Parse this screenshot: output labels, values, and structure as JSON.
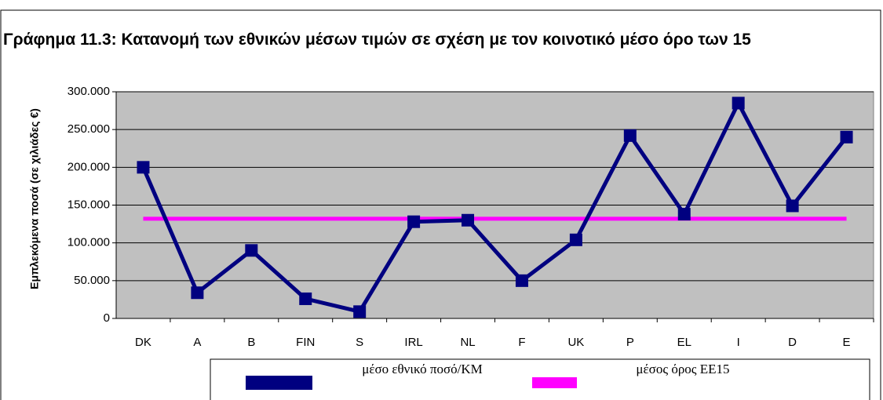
{
  "chart_data": {
    "type": "line",
    "title": "Γράφημα 11.3: Κατανομή των εθνικών μέσων τιμών σε σχέση με τον κοινοτικό μέσο όρο των 15",
    "ylabel": "Εμπλεκόμενα ποσά (σε χιλιάδες €)",
    "categories": [
      "DK",
      "A",
      "B",
      "FIN",
      "S",
      "IRL",
      "NL",
      "F",
      "UK",
      "P",
      "EL",
      "I",
      "D",
      "E"
    ],
    "series": [
      {
        "name": "μέσο εθνικό ποσό/ΚΜ",
        "color": "#000080",
        "marker": true,
        "values": [
          200000,
          34000,
          90000,
          26000,
          9000,
          128000,
          130000,
          50000,
          104000,
          242000,
          138000,
          285000,
          149000,
          240000
        ]
      },
      {
        "name": "μέσος όρος ΕΕ15",
        "color": "#ff00ff",
        "marker": false,
        "values": [
          132000,
          132000,
          132000,
          132000,
          132000,
          132000,
          132000,
          132000,
          132000,
          132000,
          132000,
          132000,
          132000,
          132000
        ]
      }
    ],
    "ylim": [
      0,
      300000
    ],
    "yticks": [
      0,
      {
        "value": 50000,
        "label": "50.000"
      },
      {
        "value": 100000,
        "label": "100.000"
      },
      {
        "value": 150000,
        "label": "150.000"
      },
      {
        "value": 200000,
        "label": "200.000"
      },
      {
        "value": 250000,
        "label": "250.000"
      },
      {
        "value": 300000,
        "label": "300.000"
      }
    ],
    "grid": true,
    "legend": "bottom"
  }
}
